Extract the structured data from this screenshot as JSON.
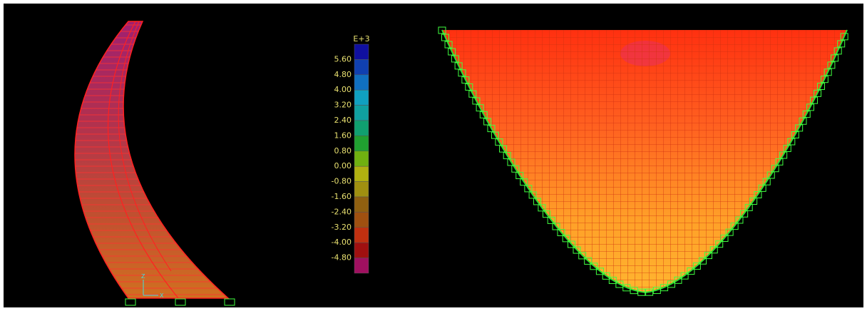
{
  "legend": {
    "exponent": "E+3",
    "labels": [
      "5.60",
      "4.80",
      "4.00",
      "3.20",
      "2.40",
      "1.60",
      "0.80",
      "0.00",
      "-0.80",
      "-1.60",
      "-2.40",
      "-3.20",
      "-4.00",
      "-4.80"
    ]
  },
  "axes": {
    "z": "Z",
    "x": "X"
  }
}
